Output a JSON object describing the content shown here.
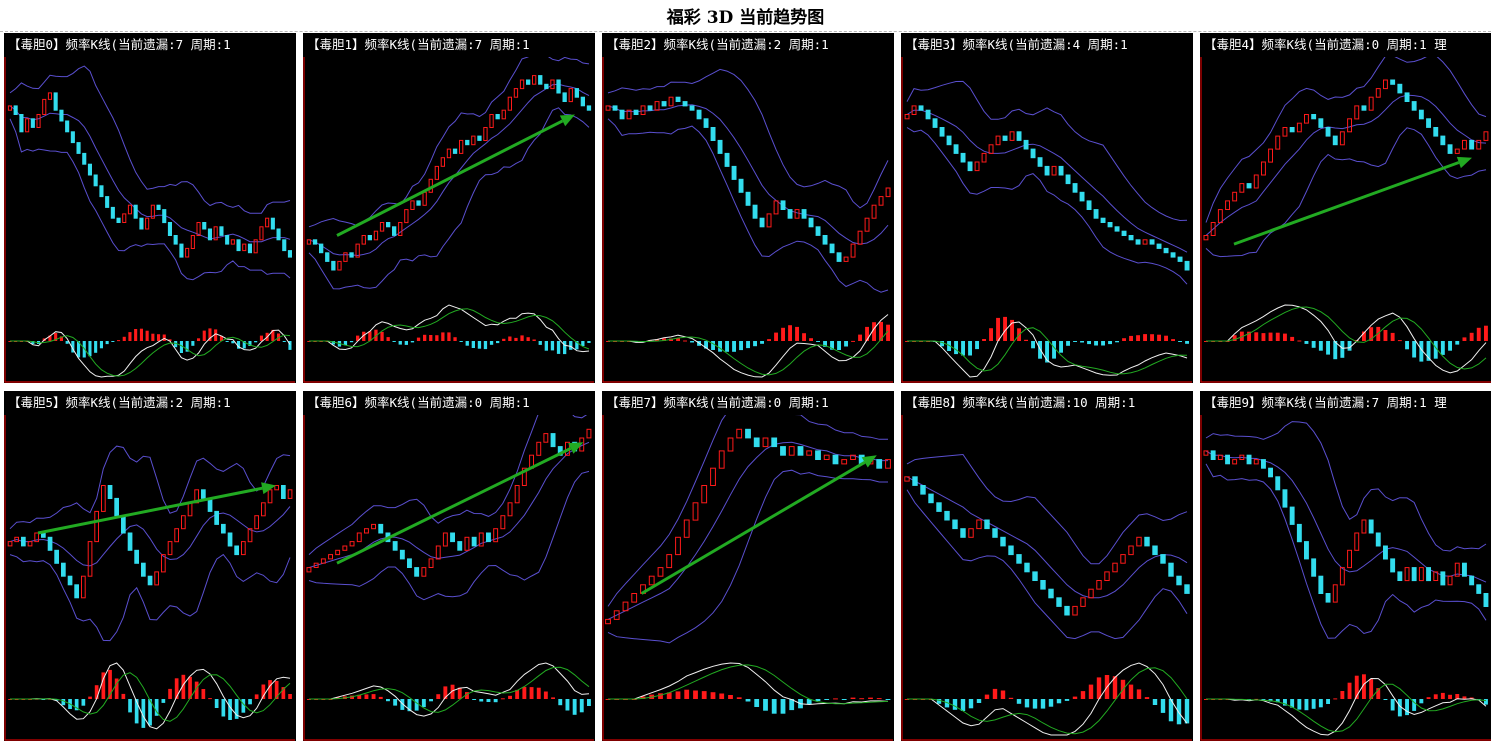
{
  "title": "福彩 3D 当前趋势图",
  "colors": {
    "up": "#ff1a1a",
    "down": "#33ddee",
    "band": "#5a4fcf",
    "axis": "#cc0000",
    "trend_arrow": "#22aa22",
    "line_white": "#f0f0f0",
    "line_green": "#22aa22",
    "background": "#000000"
  },
  "chart_data": [
    {
      "type": "bar",
      "panel": "毒胆0",
      "header": "【毒胆0】频率K线(当前遗漏:7 周期:1",
      "missing": 7,
      "period": 1,
      "values": [
        0.82,
        0.78,
        0.7,
        0.76,
        0.72,
        0.78,
        0.85,
        0.88,
        0.8,
        0.75,
        0.7,
        0.65,
        0.6,
        0.55,
        0.5,
        0.45,
        0.4,
        0.35,
        0.3,
        0.28,
        0.32,
        0.36,
        0.3,
        0.25,
        0.3,
        0.36,
        0.34,
        0.28,
        0.22,
        0.18,
        0.12,
        0.16,
        0.22,
        0.28,
        0.25,
        0.2,
        0.26,
        0.22,
        0.18,
        0.2,
        0.15,
        0.18,
        0.14,
        0.2,
        0.26,
        0.3,
        0.25,
        0.2,
        0.15,
        0.12
      ]
    },
    {
      "type": "bar",
      "panel": "毒胆1",
      "header": "【毒胆1】频率K线(当前遗漏:7 周期:1",
      "missing": 7,
      "period": 1,
      "trend_arrow": [
        [
          0.1,
          0.22
        ],
        [
          0.95,
          0.78
        ]
      ],
      "values": [
        0.2,
        0.18,
        0.14,
        0.1,
        0.06,
        0.1,
        0.14,
        0.12,
        0.18,
        0.22,
        0.2,
        0.24,
        0.28,
        0.26,
        0.22,
        0.28,
        0.34,
        0.38,
        0.36,
        0.42,
        0.48,
        0.54,
        0.58,
        0.62,
        0.6,
        0.66,
        0.64,
        0.68,
        0.66,
        0.72,
        0.78,
        0.76,
        0.8,
        0.86,
        0.9,
        0.94,
        0.92,
        0.96,
        0.92,
        0.9,
        0.94,
        0.88,
        0.84,
        0.9,
        0.86,
        0.82,
        0.8
      ]
    },
    {
      "type": "bar",
      "panel": "毒胆2",
      "header": "【毒胆2】频率K线(当前遗漏:2 周期:1",
      "missing": 2,
      "period": 1,
      "values": [
        0.82,
        0.8,
        0.76,
        0.8,
        0.78,
        0.82,
        0.8,
        0.84,
        0.82,
        0.86,
        0.84,
        0.82,
        0.8,
        0.76,
        0.72,
        0.66,
        0.6,
        0.54,
        0.48,
        0.42,
        0.36,
        0.3,
        0.26,
        0.32,
        0.38,
        0.34,
        0.3,
        0.34,
        0.3,
        0.26,
        0.22,
        0.18,
        0.14,
        0.1,
        0.12,
        0.18,
        0.24,
        0.3,
        0.36,
        0.4,
        0.44
      ]
    },
    {
      "type": "bar",
      "panel": "毒胆3",
      "header": "【毒胆3】频率K线(当前遗漏:4 周期:1",
      "missing": 4,
      "period": 1,
      "values": [
        0.78,
        0.82,
        0.8,
        0.76,
        0.72,
        0.68,
        0.64,
        0.6,
        0.56,
        0.52,
        0.56,
        0.6,
        0.64,
        0.68,
        0.66,
        0.7,
        0.66,
        0.62,
        0.58,
        0.54,
        0.5,
        0.54,
        0.5,
        0.46,
        0.42,
        0.38,
        0.34,
        0.3,
        0.28,
        0.26,
        0.24,
        0.22,
        0.2,
        0.18,
        0.2,
        0.18,
        0.16,
        0.14,
        0.12,
        0.1,
        0.06
      ]
    },
    {
      "type": "bar",
      "panel": "毒胆4",
      "header": "【毒胆4】频率K线(当前遗漏:0 周期:1 理",
      "missing": 0,
      "period": 1,
      "trend_arrow": [
        [
          0.1,
          0.18
        ],
        [
          0.95,
          0.58
        ]
      ],
      "values": [
        0.22,
        0.28,
        0.34,
        0.38,
        0.42,
        0.46,
        0.44,
        0.5,
        0.56,
        0.62,
        0.68,
        0.72,
        0.7,
        0.74,
        0.78,
        0.76,
        0.72,
        0.68,
        0.64,
        0.7,
        0.76,
        0.82,
        0.8,
        0.86,
        0.9,
        0.94,
        0.92,
        0.88,
        0.84,
        0.8,
        0.76,
        0.72,
        0.68,
        0.64,
        0.6,
        0.62,
        0.66,
        0.62,
        0.66,
        0.7
      ]
    },
    {
      "type": "bar",
      "panel": "毒胆5",
      "header": "【毒胆5】频率K线(当前遗漏:2 周期:1",
      "missing": 2,
      "period": 1,
      "trend_arrow": [
        [
          0.1,
          0.5
        ],
        [
          0.95,
          0.72
        ]
      ],
      "values": [
        0.46,
        0.48,
        0.44,
        0.46,
        0.5,
        0.48,
        0.42,
        0.36,
        0.3,
        0.26,
        0.2,
        0.3,
        0.46,
        0.6,
        0.72,
        0.66,
        0.58,
        0.5,
        0.42,
        0.36,
        0.3,
        0.26,
        0.32,
        0.4,
        0.46,
        0.52,
        0.58,
        0.64,
        0.7,
        0.66,
        0.6,
        0.54,
        0.5,
        0.44,
        0.4,
        0.46,
        0.52,
        0.58,
        0.64,
        0.7,
        0.72,
        0.66,
        0.7
      ]
    },
    {
      "type": "bar",
      "panel": "毒胆6",
      "header": "【毒胆6】频率K线(当前遗漏:0 周期:1",
      "missing": 0,
      "period": 1,
      "trend_arrow": [
        [
          0.1,
          0.36
        ],
        [
          0.98,
          0.92
        ]
      ],
      "values": [
        0.34,
        0.36,
        0.38,
        0.4,
        0.42,
        0.44,
        0.46,
        0.5,
        0.52,
        0.54,
        0.5,
        0.46,
        0.42,
        0.38,
        0.34,
        0.3,
        0.34,
        0.38,
        0.44,
        0.5,
        0.46,
        0.42,
        0.48,
        0.44,
        0.5,
        0.46,
        0.52,
        0.58,
        0.64,
        0.72,
        0.8,
        0.86,
        0.92,
        0.96,
        0.9,
        0.86,
        0.92,
        0.88,
        0.94,
        0.98
      ]
    },
    {
      "type": "bar",
      "panel": "毒胆7",
      "header": "【毒胆7】频率K线(当前遗漏:0 周期:1",
      "missing": 0,
      "period": 1,
      "trend_arrow": [
        [
          0.12,
          0.22
        ],
        [
          0.96,
          0.86
        ]
      ],
      "values": [
        0.1,
        0.14,
        0.18,
        0.22,
        0.26,
        0.3,
        0.34,
        0.4,
        0.48,
        0.56,
        0.64,
        0.72,
        0.8,
        0.88,
        0.94,
        0.98,
        0.94,
        0.9,
        0.94,
        0.9,
        0.86,
        0.9,
        0.86,
        0.88,
        0.84,
        0.86,
        0.82,
        0.84,
        0.86,
        0.82,
        0.84,
        0.8,
        0.84
      ]
    },
    {
      "type": "bar",
      "panel": "毒胆8",
      "header": "【毒胆8】频率K线(当前遗漏:10 周期:1",
      "missing": 10,
      "period": 1,
      "values": [
        0.76,
        0.72,
        0.68,
        0.64,
        0.6,
        0.56,
        0.52,
        0.48,
        0.52,
        0.56,
        0.52,
        0.48,
        0.44,
        0.4,
        0.36,
        0.32,
        0.28,
        0.24,
        0.2,
        0.16,
        0.12,
        0.16,
        0.2,
        0.24,
        0.28,
        0.32,
        0.36,
        0.4,
        0.44,
        0.48,
        0.44,
        0.4,
        0.36,
        0.3,
        0.26,
        0.22
      ]
    },
    {
      "type": "bar",
      "panel": "毒胆9",
      "header": "【毒胆9】频率K线(当前遗漏:7 周期:1 理",
      "missing": 7,
      "period": 1,
      "values": [
        0.88,
        0.84,
        0.86,
        0.82,
        0.84,
        0.86,
        0.82,
        0.84,
        0.8,
        0.76,
        0.7,
        0.62,
        0.54,
        0.46,
        0.38,
        0.3,
        0.22,
        0.18,
        0.26,
        0.34,
        0.42,
        0.5,
        0.56,
        0.5,
        0.44,
        0.38,
        0.32,
        0.28,
        0.34,
        0.28,
        0.34,
        0.28,
        0.32,
        0.26,
        0.3,
        0.36,
        0.3,
        0.26,
        0.22,
        0.16
      ]
    }
  ]
}
